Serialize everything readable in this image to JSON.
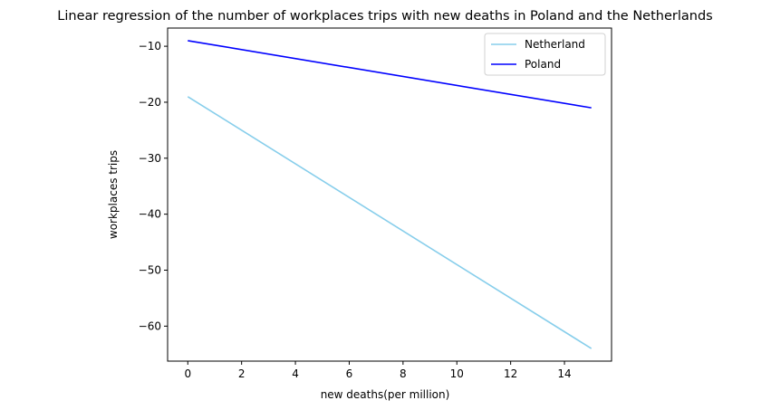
{
  "chart_data": {
    "type": "line",
    "title": "Linear regression of the number of workplaces trips with new deaths in Poland and the Netherlands",
    "xlabel": "new deaths(per million)",
    "ylabel": "workplaces trips",
    "xlim": [
      -0.75,
      15.75
    ],
    "ylim": [
      -66.25,
      -6.75
    ],
    "xticks": [
      0,
      2,
      4,
      6,
      8,
      10,
      12,
      14
    ],
    "yticks": [
      -60,
      -50,
      -40,
      -30,
      -20,
      -10
    ],
    "grid": false,
    "legend_position": "top-right",
    "series": [
      {
        "name": "Netherland",
        "color": "#87ceeb",
        "x": [
          0,
          15
        ],
        "y": [
          -19,
          -64
        ]
      },
      {
        "name": "Poland",
        "color": "#0000ff",
        "x": [
          0,
          15
        ],
        "y": [
          -9,
          -21
        ]
      }
    ]
  }
}
